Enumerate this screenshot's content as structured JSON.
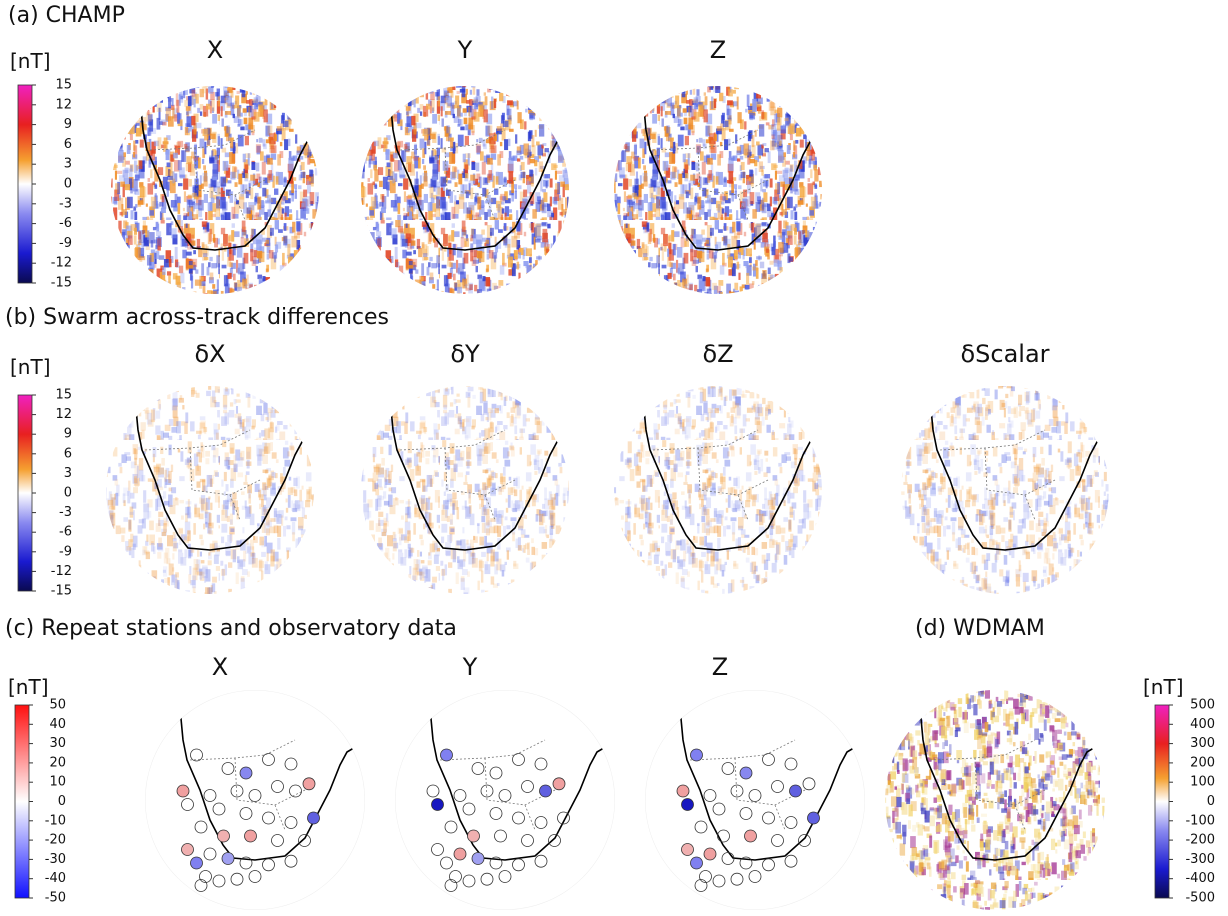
{
  "panels": [
    {
      "label": "(a) CHAMP",
      "unit": "[nT]",
      "range": [
        -15,
        15
      ],
      "ticks": [
        -15,
        -12,
        -9,
        -6,
        -3,
        0,
        3,
        6,
        9,
        12,
        15
      ],
      "maps": [
        "X",
        "Y",
        "Z"
      ]
    },
    {
      "label": "(b) Swarm across-track differences",
      "unit": "[nT]",
      "range": [
        -15,
        15
      ],
      "ticks": [
        -15,
        -12,
        -9,
        -6,
        -3,
        0,
        3,
        6,
        9,
        12,
        15
      ],
      "maps": [
        "δX",
        "δY",
        "δZ",
        "δScalar"
      ]
    },
    {
      "label": "(c) Repeat stations and observatory data",
      "unit": "[nT]",
      "range": [
        -50,
        50
      ],
      "ticks": [
        -50,
        -40,
        -30,
        -20,
        -10,
        0,
        10,
        20,
        30,
        40,
        50
      ],
      "maps": [
        "X",
        "Y",
        "Z"
      ]
    },
    {
      "label": "(d) WDMAM",
      "unit": "[nT]",
      "range": [
        -500,
        500
      ],
      "ticks": [
        -500,
        -400,
        -300,
        -200,
        -100,
        0,
        100,
        200,
        300,
        400,
        500
      ],
      "maps": []
    }
  ]
}
